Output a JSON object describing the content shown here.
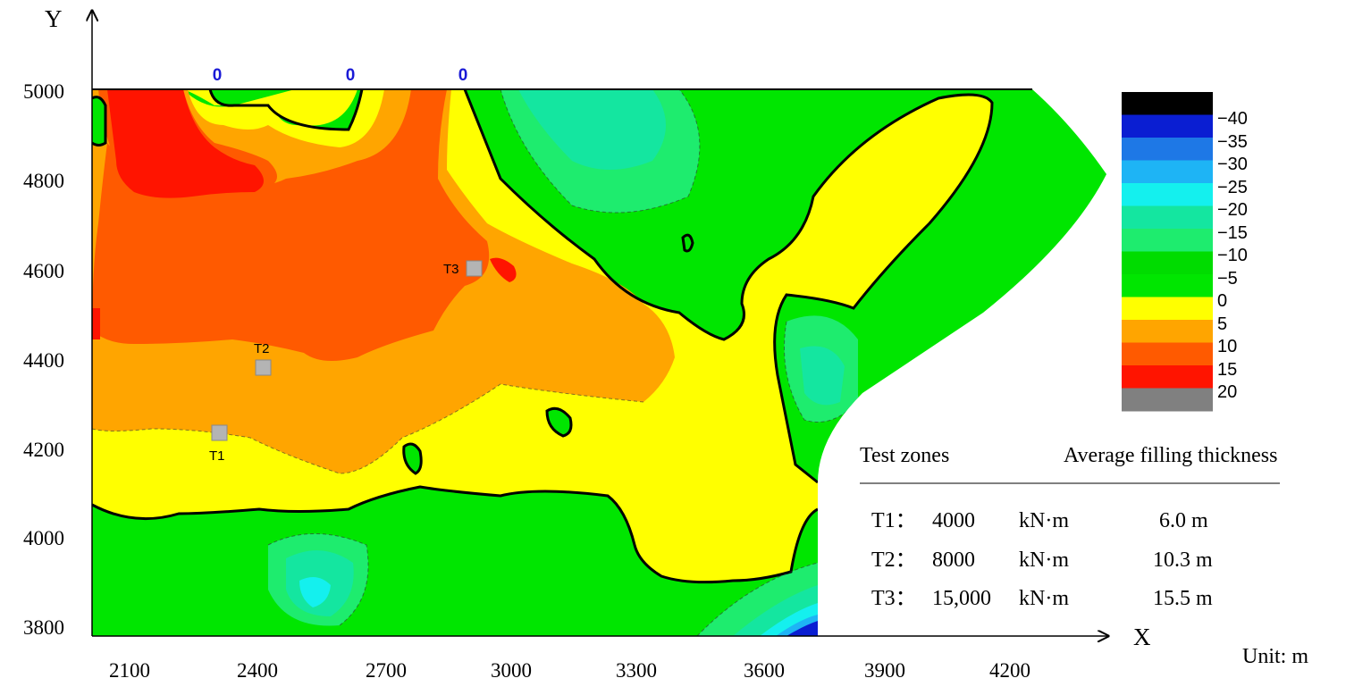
{
  "axes": {
    "y_label": "Y",
    "x_label": "X",
    "x_ticks": [
      "2100",
      "2400",
      "2700",
      "3000",
      "3300",
      "3600",
      "3900",
      "4200"
    ],
    "y_ticks": [
      "5000",
      "4800",
      "4600",
      "4400",
      "4200",
      "4000",
      "3800"
    ],
    "unit_text": "Unit:  m"
  },
  "contour_zero_labels": [
    "0",
    "0",
    "0"
  ],
  "legend": {
    "levels": [
      "−40",
      "−35",
      "−30",
      "−25",
      "−20",
      "−15",
      "−10",
      "−5",
      "0",
      "5",
      "10",
      "15",
      "20"
    ],
    "colors": [
      "#000000",
      "#0a1ed2",
      "#1e78e6",
      "#1eb4f5",
      "#14f0ee",
      "#14e6a0",
      "#1eec6e",
      "#00dc00",
      "#00e600",
      "#ffff00",
      "#ffa500",
      "#ff5a00",
      "#ff1400",
      "#808080"
    ]
  },
  "test_points": [
    {
      "label": "T3"
    },
    {
      "label": "T2"
    },
    {
      "label": "T1"
    }
  ],
  "table": {
    "header_zone": "Test zones",
    "header_thickness": "Average  filling  thickness",
    "rows": [
      {
        "zone": "T1：",
        "energy": "4000",
        "unit": "kN·m",
        "thickness": "6.0 m"
      },
      {
        "zone": "T2：",
        "energy": "8000",
        "unit": "kN·m",
        "thickness": "10.3 m"
      },
      {
        "zone": "T3：",
        "energy": "15,000",
        "unit": "kN·m",
        "thickness": "15.5 m"
      }
    ]
  },
  "colors": {
    "fill_0_to_neg5": "#00e600",
    "fill_neg5_to_neg10": "#1eec6e",
    "fill_neg10_to_neg15": "#14e6a0",
    "fill_neg15_to_neg20": "#14f0ee",
    "fill_0_to_5": "#ffff00",
    "fill_5_to_10": "#ffa500",
    "fill_10_to_15": "#ff5a00",
    "fill_15_to_20": "#ff1400",
    "deep_blue": "#0a1ed2",
    "zero_line": "#000000",
    "test_marker": "#b4b4b4"
  }
}
